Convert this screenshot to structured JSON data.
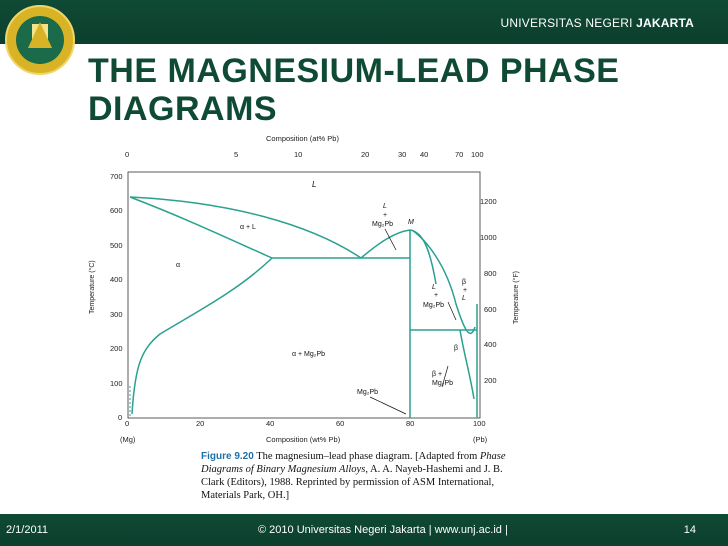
{
  "header": {
    "university_prefix": "UNIVERSITAS NEGERI",
    "university_bold": "JAKARTA"
  },
  "slide": {
    "title": "THE MAGNESIUM-LEAD PHASE DIAGRAMS"
  },
  "diagram": {
    "top_axis_label": "Composition (at% Pb)",
    "top_ticks": [
      "0",
      "5",
      "10",
      "20",
      "30",
      "40",
      "70",
      "100"
    ],
    "bottom_axis_label": "Composition (wt% Pb)",
    "bottom_ticks": [
      "0",
      "20",
      "40",
      "60",
      "80",
      "100"
    ],
    "bottom_end_left": "(Mg)",
    "bottom_end_right": "(Pb)",
    "left_axis_label": "Temperature (°C)",
    "left_ticks": [
      "0",
      "100",
      "200",
      "300",
      "400",
      "500",
      "600",
      "700"
    ],
    "right_axis_label": "Temperature (°F)",
    "right_ticks": [
      "200",
      "400",
      "600",
      "800",
      "1000",
      "1200"
    ],
    "regions": {
      "liquid": "L",
      "alpha": "α",
      "alpha_plus_L": "α + L",
      "L_plus_Mg2Pb_L": "L",
      "L_plus_Mg2Pb_plus": "+",
      "L_plus_Mg2Pb_compound": "Mg₂Pb",
      "M_label": "M",
      "right_L": "L",
      "right_plus": "+",
      "right_Mg2Pb": "Mg₂Pb",
      "beta_L_beta": "β",
      "beta_L_plus": "+",
      "beta_L_L": "L",
      "beta": "β",
      "alpha_plus_Mg2Pb": "α   + Mg₂Pb",
      "beta_plus": "β +",
      "beta_plus_Mg2Pb": "Mg₂Pb",
      "compound_line_label": "Mg₂Pb"
    }
  },
  "caption": {
    "figure_label": "Figure 9.20",
    "text_1": "  The magnesium–lead phase diagram. [Adapted from ",
    "italic_1": "Phase Diagrams of Binary Magnesium Alloys",
    "text_2": ", A. A. Nayeb-Hashemi and J. B. Clark (Editors), 1988. Reprinted by permission of ASM International, Materials Park, OH.]"
  },
  "footer": {
    "date": "2/1/2011",
    "copyright": "©  2010 Universitas Negeri Jakarta   |  www.unj.ac.id   |",
    "page_number": "14"
  },
  "colors": {
    "brand_green": "#0f4a35",
    "curve_teal": "#2aa090"
  }
}
